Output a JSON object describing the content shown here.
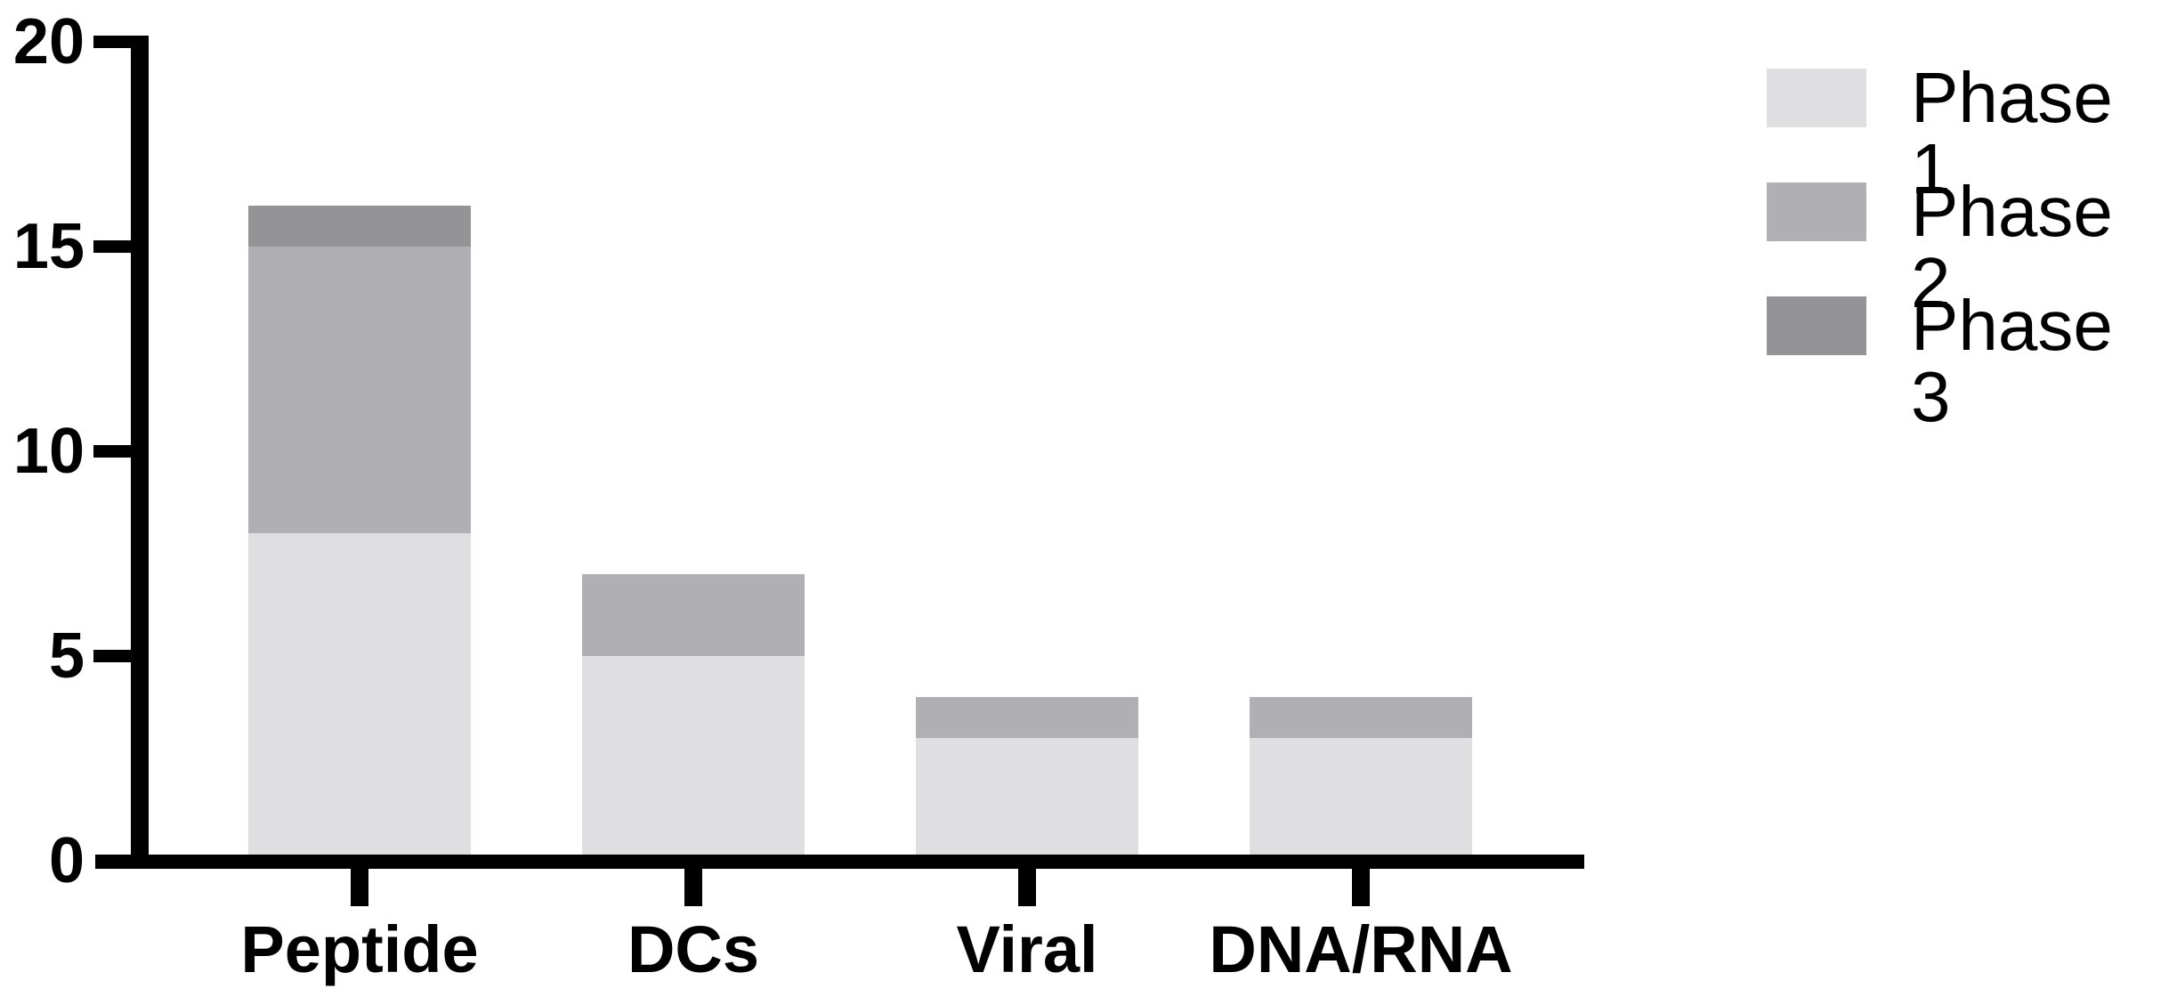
{
  "figure": {
    "background": "#ffffff",
    "axis_color": "#000000",
    "text_color": "#000000"
  },
  "chart_data": {
    "type": "bar",
    "stacked": true,
    "title": "",
    "xlabel": "",
    "ylabel": "",
    "categories": [
      "Peptide",
      "DCs",
      "Viral",
      "DNA/RNA"
    ],
    "series": [
      {
        "name": "Phase 1",
        "color": "#dfdfe1",
        "values": [
          8,
          5,
          3,
          3
        ]
      },
      {
        "name": "Phase 2",
        "color": "#b0b0b4",
        "values": [
          7,
          2,
          1,
          1
        ]
      },
      {
        "name": "Phase 3",
        "color": "#949497",
        "values": [
          1,
          0,
          0,
          0
        ]
      }
    ],
    "stack_totals": [
      16,
      7,
      4,
      4
    ],
    "ylim": [
      0,
      20
    ],
    "yticks": [
      0,
      5,
      10,
      15,
      20
    ],
    "grid": false,
    "legend": {
      "position": "top-right",
      "entries": [
        "Phase 1",
        "Phase 2",
        "Phase 3"
      ]
    }
  }
}
